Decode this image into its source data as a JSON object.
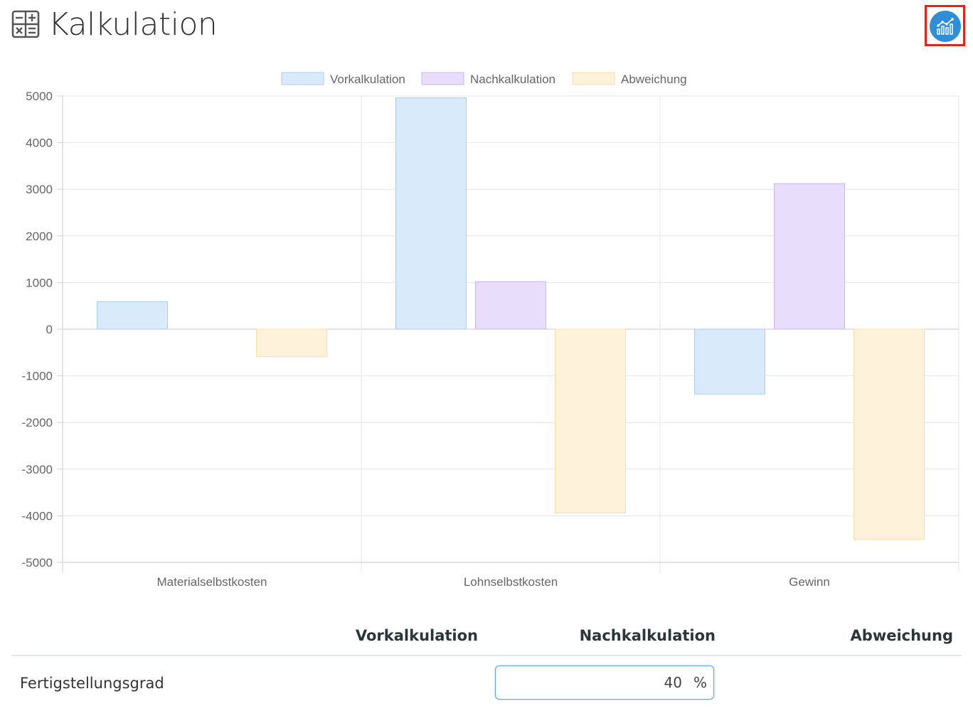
{
  "header": {
    "title": "Kalkulation",
    "title_icon": "calculator-icon",
    "chart_button_icon": "chart-analytics-icon",
    "accent_color": "#2e8fd8",
    "highlight_color": "#e0261b"
  },
  "chart_data": {
    "type": "bar",
    "categories": [
      "Materialselbstkosten",
      "Lohnselbstkosten",
      "Gewinn"
    ],
    "series": [
      {
        "name": "Vorkalkulation",
        "values": [
          590,
          4960,
          -1390
        ],
        "fill": "#d9eafb",
        "stroke": "#a7cdf2"
      },
      {
        "name": "Nachkalkulation",
        "values": [
          0,
          1020,
          3120
        ],
        "fill": "#e9ddfc",
        "stroke": "#cbb2f3"
      },
      {
        "name": "Abweichung",
        "values": [
          -590,
          -3940,
          -4510
        ],
        "fill": "#fef2da",
        "stroke": "#f8dfa6"
      }
    ],
    "ylim": [
      -5000,
      5000
    ],
    "yticks": [
      "5000",
      "4000",
      "3000",
      "2000",
      "1000",
      "0",
      "-1000",
      "-2000",
      "-3000",
      "-4000",
      "-5000"
    ],
    "ytick_values": [
      5000,
      4000,
      3000,
      2000,
      1000,
      0,
      -1000,
      -2000,
      -3000,
      -4000,
      -5000
    ],
    "legend": "top-center",
    "grid": true
  },
  "table": {
    "headers": [
      "Vorkalkulation",
      "Nachkalkulation",
      "Abweichung"
    ],
    "rows": [
      {
        "label": "Fertigstellungsgrad",
        "value": "40",
        "unit": "%"
      }
    ]
  }
}
